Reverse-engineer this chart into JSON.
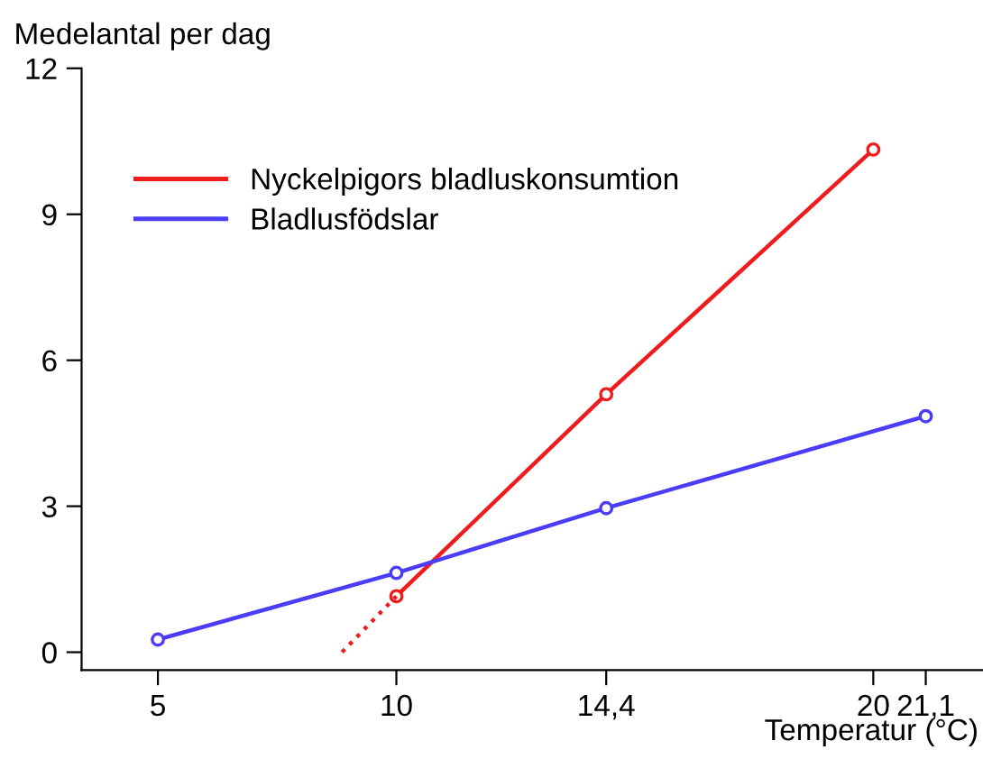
{
  "chart_data": {
    "type": "line",
    "ylabel": "Medelantal per dag",
    "xlabel": "Temperatur (°C)",
    "xlim": [
      3.4,
      22.3
    ],
    "ylim": [
      -0.37,
      12
    ],
    "xticks": [
      5,
      10,
      {
        "value": 14.4,
        "label": "14,4"
      },
      20,
      {
        "value": 21.1,
        "label": "21,1"
      }
    ],
    "yticks": [
      0,
      3,
      6,
      9,
      12
    ],
    "grid": false,
    "legend": "top left",
    "marker": "circle",
    "line_style": "solid",
    "series": [
      {
        "name": "Nyckelpigors bladluskonsumtion",
        "color": "#ee1c1c",
        "x": [
          10,
          14.4,
          20
        ],
        "values": [
          1.15,
          5.3,
          10.33
        ]
      },
      {
        "color": "#ee1c1c",
        "x": [
          8.86,
          10
        ],
        "values": [
          0,
          1.15
        ],
        "marker": "none",
        "line_style": "dotted"
      },
      {
        "name": "Bladlusfödslar",
        "color": "#4b3cf5",
        "x": [
          5,
          10,
          14.4,
          21.1
        ],
        "values": [
          0.26,
          1.63,
          2.96,
          4.85
        ]
      }
    ]
  }
}
